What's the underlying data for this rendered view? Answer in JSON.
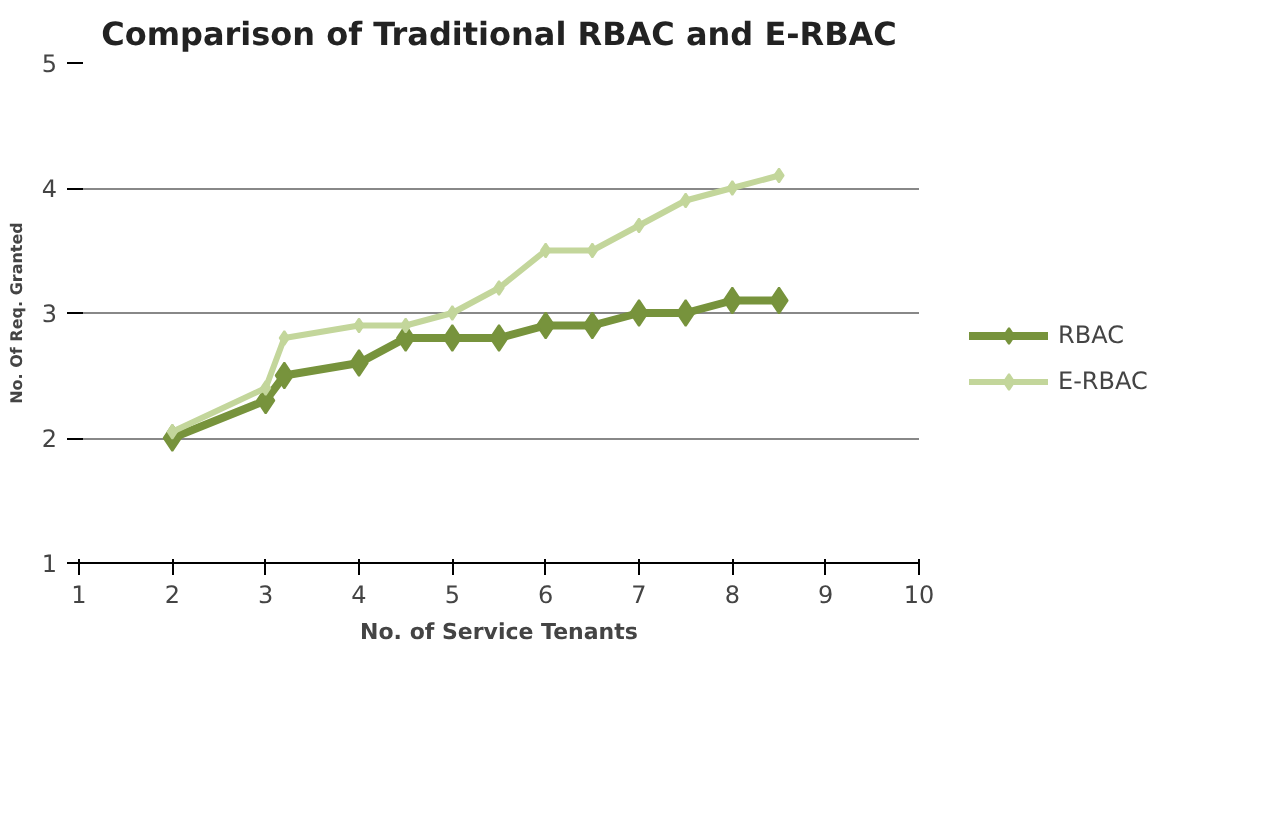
{
  "chart_data": {
    "type": "line",
    "title": "Comparison of Traditional RBAC and E-RBAC",
    "xlabel": "No. of Service Tenants",
    "ylabel": "No. Of Req. Granted",
    "xlim": [
      1,
      10
    ],
    "xticks": [
      1,
      2,
      3,
      4,
      5,
      6,
      7,
      8,
      9,
      10
    ],
    "ylim": [
      1,
      5
    ],
    "yticks": [
      1,
      2,
      3,
      4,
      5
    ],
    "grid": "y",
    "legend": "right",
    "marker": "diamond",
    "line_style": "solid",
    "series": [
      {
        "name": "RBAC",
        "color": "#77933c",
        "x": [
          2,
          3,
          3.2,
          4,
          4.5,
          5,
          5.5,
          6,
          6.5,
          7,
          7.5,
          8,
          8.5
        ],
        "values": [
          2,
          2.3,
          2.5,
          2.6,
          2.8,
          2.8,
          2.8,
          2.9,
          2.9,
          3,
          3,
          3.1,
          3.1
        ]
      },
      {
        "name": "E-RBAC",
        "color": "#c3d69b",
        "x": [
          2,
          3,
          3.2,
          4,
          4.5,
          5,
          5.5,
          6,
          6.5,
          7,
          7.5,
          8,
          8.5
        ],
        "values": [
          2.05,
          2.4,
          2.8,
          2.9,
          2.9,
          3.0,
          3.2,
          3.5,
          3.5,
          3.7,
          3.9,
          4.0,
          4.1
        ]
      }
    ]
  }
}
